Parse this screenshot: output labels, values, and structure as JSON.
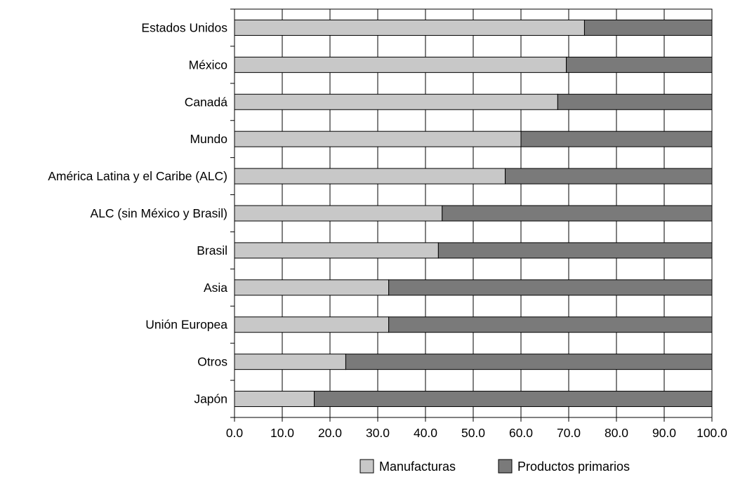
{
  "chart_data": {
    "type": "bar",
    "orientation": "horizontal",
    "stacked": true,
    "categories": [
      "Estados Unidos",
      "México",
      "Canadá",
      "Mundo",
      "América Latina y el Caribe (ALC)",
      "ALC (sin México y Brasil)",
      "Brasil",
      "Asia",
      "Unión Europea",
      "Otros",
      "Japón"
    ],
    "series": [
      {
        "name": "Manufacturas",
        "color": "#c8c8c8",
        "values": [
          73.3,
          69.5,
          67.7,
          60.0,
          56.7,
          43.5,
          42.7,
          32.3,
          32.3,
          23.3,
          16.7
        ]
      },
      {
        "name": "Productos primarios",
        "color": "#7a7a7a",
        "values": [
          26.7,
          30.5,
          32.3,
          40.0,
          43.3,
          56.5,
          57.3,
          67.7,
          67.7,
          76.7,
          83.3
        ]
      }
    ],
    "xlim": [
      0,
      100
    ],
    "xticks": [
      "0.0",
      "10.0",
      "20.0",
      "30.0",
      "40.0",
      "50.0",
      "60.0",
      "70.0",
      "80.0",
      "90.0",
      "100.0"
    ],
    "grid": true,
    "legend_position": "bottom"
  }
}
